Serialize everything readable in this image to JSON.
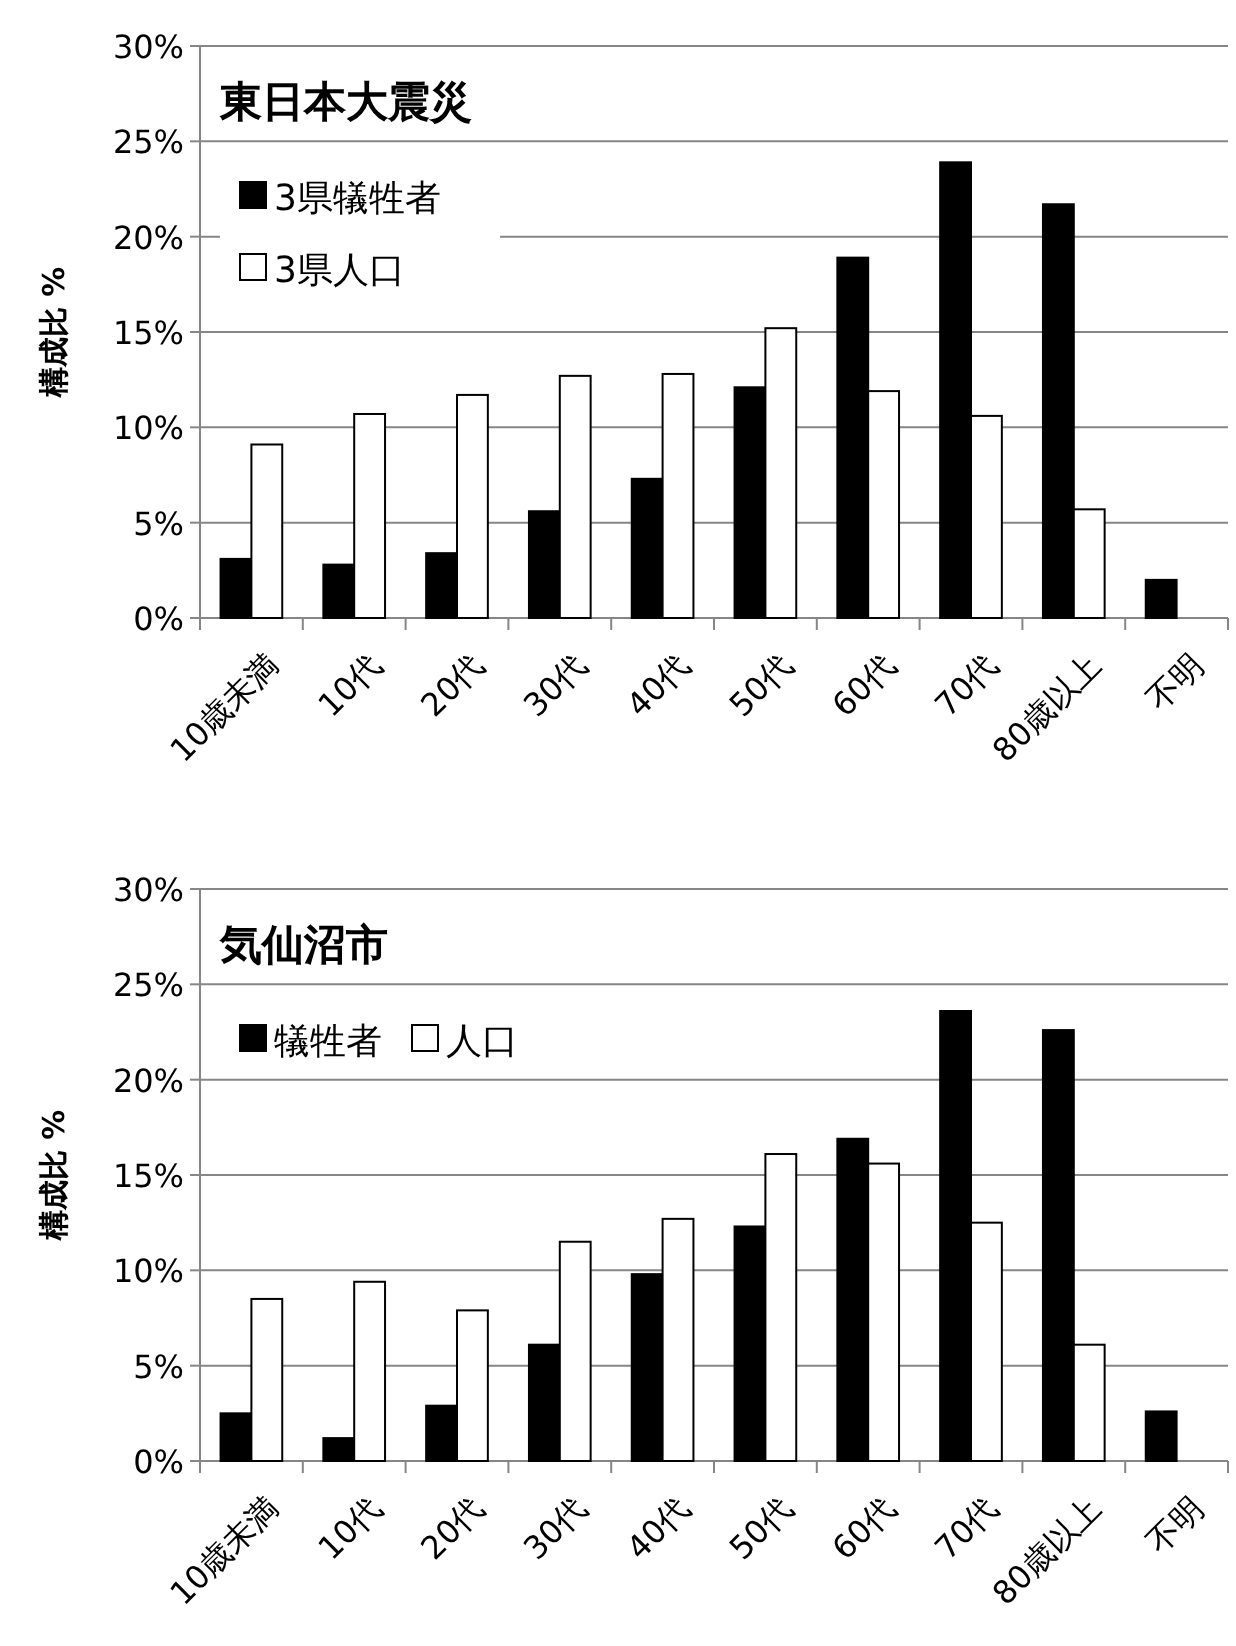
{
  "chart_data": [
    {
      "type": "bar",
      "title": "東日本大震災",
      "ylabel": "構成比 %",
      "categories": [
        "10歳未満",
        "10代",
        "20代",
        "30代",
        "40代",
        "50代",
        "60代",
        "70代",
        "80歳以上",
        "不明"
      ],
      "series": [
        {
          "name": "3県犠牲者",
          "color": "#000000",
          "values": [
            3.1,
            2.8,
            3.4,
            5.6,
            7.3,
            12.1,
            18.9,
            23.9,
            21.7,
            2.0
          ]
        },
        {
          "name": "3県人口",
          "color": "#ffffff",
          "values": [
            9.1,
            10.7,
            11.7,
            12.7,
            12.8,
            15.2,
            11.9,
            10.6,
            5.7,
            null
          ]
        }
      ],
      "ylim": [
        0,
        30
      ],
      "yticks": [
        {
          "value": 0,
          "label": "0%"
        },
        {
          "value": 5,
          "label": "5%"
        },
        {
          "value": 10,
          "label": "10%"
        },
        {
          "value": 15,
          "label": "15%"
        },
        {
          "value": 20,
          "label": "20%"
        },
        {
          "value": 25,
          "label": "25%"
        },
        {
          "value": 30,
          "label": "30%"
        }
      ],
      "grid": "y",
      "legend": "top left"
    },
    {
      "type": "bar",
      "title": "気仙沼市",
      "ylabel": "構成比 %",
      "categories": [
        "10歳未満",
        "10代",
        "20代",
        "30代",
        "40代",
        "50代",
        "60代",
        "70代",
        "80歳以上",
        "不明"
      ],
      "series": [
        {
          "name": "犠牲者",
          "color": "#000000",
          "values": [
            2.5,
            1.2,
            2.9,
            6.1,
            9.8,
            12.3,
            16.9,
            23.6,
            22.6,
            2.6
          ]
        },
        {
          "name": "人口",
          "color": "#ffffff",
          "values": [
            8.5,
            9.4,
            7.9,
            11.5,
            12.7,
            16.1,
            15.6,
            12.5,
            6.1,
            null
          ]
        }
      ],
      "ylim": [
        0,
        30
      ],
      "yticks": [
        {
          "value": 0,
          "label": "0%"
        },
        {
          "value": 5,
          "label": "5%"
        },
        {
          "value": 10,
          "label": "10%"
        },
        {
          "value": 15,
          "label": "15%"
        },
        {
          "value": 20,
          "label": "20%"
        },
        {
          "value": 25,
          "label": "25%"
        },
        {
          "value": 30,
          "label": "30%"
        }
      ],
      "grid": "y",
      "legend": "top left"
    }
  ]
}
